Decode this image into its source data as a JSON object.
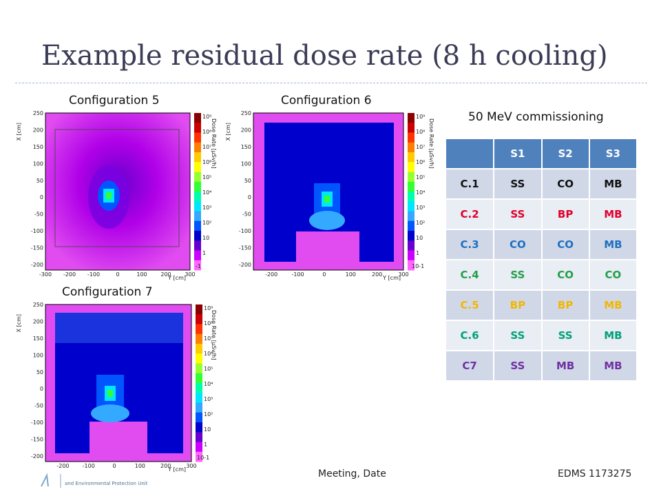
{
  "slide": {
    "title": "Example residual dose rate (8 h cooling)",
    "subtitle": "50 MeV commissioning"
  },
  "plots": {
    "p5": {
      "caption": "Configuration 5",
      "minor_label": "-1"
    },
    "p6": {
      "caption": "Configuration 6",
      "minor_label": "10-1"
    },
    "p7": {
      "caption": "Configuration 7",
      "minor_label": "10-1"
    }
  },
  "axes": {
    "xlabel": "Y [cm]",
    "ylabel": "X [cm]",
    "colorbar_label": "Dose Rate [µSv/h]",
    "y_ticks": [
      "250",
      "200",
      "150",
      "100",
      "50",
      "0",
      "-50",
      "-100",
      "-150",
      "-200"
    ],
    "x_ticks_wide": [
      "-300",
      "-200",
      "-100",
      "0",
      "100",
      "200",
      "300"
    ],
    "x_ticks": [
      "-200",
      "-100",
      "0",
      "100",
      "200",
      "300"
    ],
    "colorbar_ticks": [
      "10⁹",
      "10⁸",
      "10⁷",
      "10⁶",
      "10⁵",
      "10⁴",
      "10³",
      "10²",
      "10",
      "1"
    ],
    "colors": [
      "#8b0000",
      "#cc0000",
      "#ff3300",
      "#ff7f00",
      "#ffcc00",
      "#ffff00",
      "#99ff33",
      "#33ff33",
      "#00ffaa",
      "#00e6ff",
      "#33aaff",
      "#0055ff",
      "#0000cc",
      "#6600cc",
      "#cc00ff",
      "#ff66ff"
    ]
  },
  "table": {
    "headers": [
      "",
      "S1",
      "S2",
      "S3"
    ],
    "rows": [
      {
        "cells": [
          "C.1",
          "SS",
          "CO",
          "MB"
        ],
        "color": "#111111"
      },
      {
        "cells": [
          "C.2",
          "SS",
          "BP",
          "MB"
        ],
        "color": "#e0002a"
      },
      {
        "cells": [
          "C.3",
          "CO",
          "CO",
          "MB"
        ],
        "color": "#1f6fc0"
      },
      {
        "cells": [
          "C.4",
          "SS",
          "CO",
          "CO"
        ],
        "color": "#22a04a"
      },
      {
        "cells": [
          "C.5",
          "BP",
          "BP",
          "MB"
        ],
        "color": "#f2b600"
      },
      {
        "cells": [
          "C.6",
          "SS",
          "SS",
          "MB"
        ],
        "color": "#00a07a"
      },
      {
        "cells": [
          "C7",
          "SS",
          "MB",
          "MB"
        ],
        "color": "#7030a0"
      }
    ]
  },
  "footer": {
    "center": "Meeting, Date",
    "right": "EDMS 1173275",
    "logo_text": "and Environmental Protection Unit"
  }
}
